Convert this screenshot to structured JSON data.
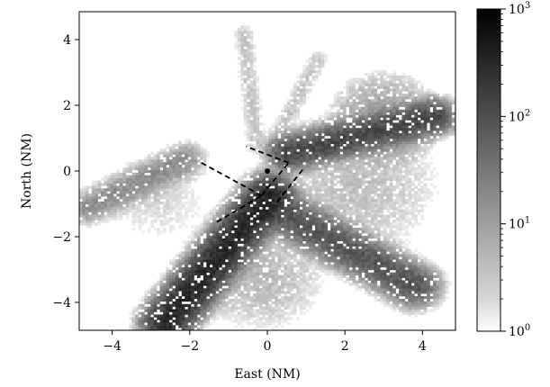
{
  "chart_data": {
    "type": "heatmap",
    "title": "",
    "xlabel": "East (NM)",
    "ylabel": "North (NM)",
    "xlim": [
      -4.85,
      4.85
    ],
    "ylim": [
      -4.85,
      4.85
    ],
    "xticks": [
      -4,
      -2,
      0,
      2,
      4
    ],
    "yticks": [
      -4,
      -2,
      0,
      2,
      4
    ],
    "x_tick_labels": [
      "−4",
      "−2",
      "0",
      "2",
      "4"
    ],
    "y_tick_labels": [
      "−4",
      "−2",
      "0",
      "2",
      "4"
    ],
    "colorbar": {
      "scale": "log",
      "min": 1,
      "max": 1000,
      "tick_values": [
        1,
        10,
        100,
        1000
      ],
      "tick_labels": [
        {
          "base": "10",
          "exp": "0"
        },
        {
          "base": "10",
          "exp": "1"
        },
        {
          "base": "10",
          "exp": "2"
        },
        {
          "base": "10",
          "exp": "3"
        }
      ],
      "colormap": "Greys",
      "low_color": "#ffffff",
      "high_color": "#000000"
    },
    "density_features": [
      {
        "kind": "segment",
        "from": [
          -2.6,
          -4.6
        ],
        "to": [
          0.05,
          -0.75
        ],
        "peak_count": 300,
        "spread_nm": 0.28
      },
      {
        "kind": "segment",
        "from": [
          0.3,
          -1.2
        ],
        "to": [
          3.8,
          -3.5
        ],
        "peak_count": 80,
        "spread_nm": 0.3
      },
      {
        "kind": "segment",
        "from": [
          0.55,
          0.55
        ],
        "to": [
          4.3,
          1.65
        ],
        "peak_count": 120,
        "spread_nm": 0.25
      },
      {
        "kind": "segment",
        "from": [
          -4.6,
          -1.1
        ],
        "to": [
          -2.1,
          0.35
        ],
        "peak_count": 15,
        "spread_nm": 0.25
      },
      {
        "kind": "segment",
        "from": [
          -0.3,
          0.8
        ],
        "to": [
          -0.6,
          4.2
        ],
        "peak_count": 3,
        "spread_nm": 0.15
      },
      {
        "kind": "segment",
        "from": [
          0.15,
          0.8
        ],
        "to": [
          1.3,
          3.4
        ],
        "peak_count": 3,
        "spread_nm": 0.15
      },
      {
        "kind": "area",
        "center": [
          2.3,
          -0.4
        ],
        "radius_nm": 2.5,
        "peak_count": 4
      },
      {
        "kind": "area",
        "center": [
          -0.2,
          -3.2
        ],
        "radius_nm": 1.9,
        "peak_count": 5
      },
      {
        "kind": "area",
        "center": [
          3.0,
          1.6
        ],
        "radius_nm": 1.6,
        "peak_count": 10
      },
      {
        "kind": "area",
        "center": [
          -2.8,
          -0.9
        ],
        "radius_nm": 1.6,
        "peak_count": 2
      }
    ],
    "runway_center": [
      0.0,
      0.0
    ],
    "approach_box_lines": [
      {
        "from": [
          -1.7,
          0.25
        ],
        "to": [
          -0.15,
          -0.75
        ]
      },
      {
        "from": [
          -0.15,
          -0.75
        ],
        "to": [
          0.55,
          0.25
        ]
      },
      {
        "from": [
          0.55,
          0.25
        ],
        "to": [
          -0.55,
          0.75
        ]
      },
      {
        "from": [
          -1.3,
          -1.55
        ],
        "to": [
          -0.15,
          -0.75
        ]
      },
      {
        "from": [
          0.25,
          -0.95
        ],
        "to": [
          0.95,
          0.1
        ]
      }
    ],
    "grid": false,
    "legend": "none"
  }
}
